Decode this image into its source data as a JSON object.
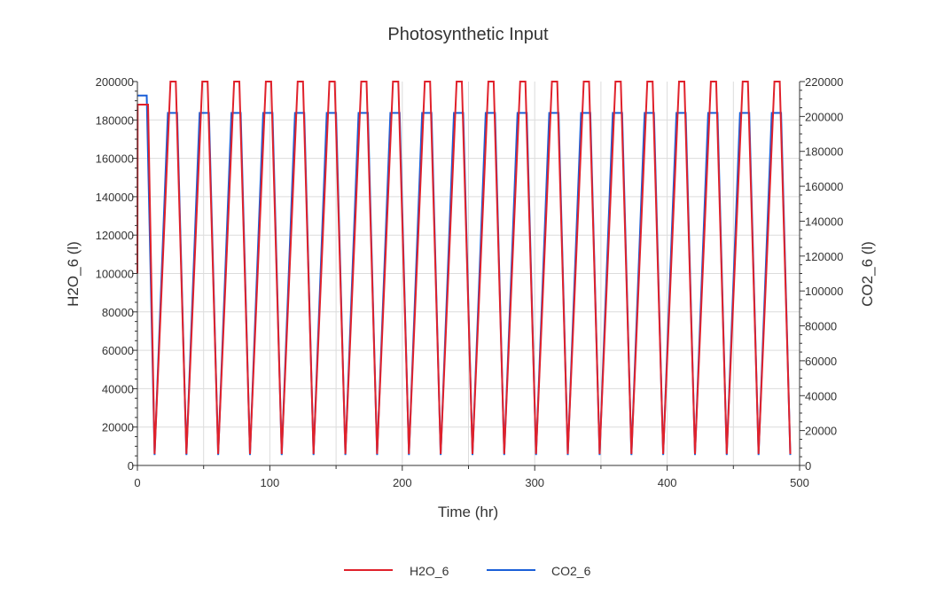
{
  "chart_data": {
    "type": "line",
    "title": "Photosynthetic Input",
    "xlabel": "Time (hr)",
    "ylabel_left": "H2O_6 (l)",
    "ylabel_right": "CO2_6 (l)",
    "xlim": [
      0,
      500
    ],
    "ylim_left": [
      0,
      200000
    ],
    "ylim_right": [
      0,
      220000
    ],
    "x_ticks": [
      "0",
      "100",
      "200",
      "300",
      "400",
      "500"
    ],
    "y_left_ticks": [
      "0",
      "20000",
      "40000",
      "60000",
      "80000",
      "100000",
      "120000",
      "140000",
      "160000",
      "180000",
      "200000"
    ],
    "y_right_ticks": [
      "0",
      "20000",
      "40000",
      "60000",
      "80000",
      "100000",
      "120000",
      "140000",
      "160000",
      "180000",
      "200000",
      "220000"
    ],
    "grid": true,
    "legend_position": "bottom",
    "series": [
      {
        "name": "H2O_6",
        "axis": "left",
        "color": "#e0212b",
        "cycle_period_hr": 24,
        "cycle_count": 21,
        "initial": {
          "start": 100000,
          "flat": 188000,
          "flat_until_hr": 8
        },
        "cycle_shape": {
          "max": 200000,
          "min": 6000,
          "plateau_hours": 4,
          "fall_hours": 8,
          "trough_time_in_cycle_hr": 13
        }
      },
      {
        "name": "CO2_6",
        "axis": "right",
        "color": "#1a5fd8",
        "cycle_period_hr": 24,
        "cycle_count": 21,
        "initial": {
          "start": 212000,
          "flat_until_hr": 7
        },
        "cycle_shape": {
          "max": 202000,
          "min": 6000,
          "plateau_hours": 7,
          "fall_hours": 7,
          "trough_time_in_cycle_hr": 13
        }
      }
    ]
  }
}
